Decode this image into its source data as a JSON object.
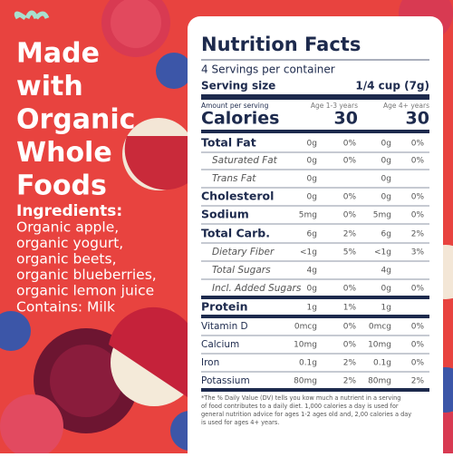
{
  "headline": [
    "Made",
    "with",
    "Organic",
    "Whole",
    "Foods"
  ],
  "ingredients": {
    "heading": "Ingredients:",
    "lines": [
      "Organic apple,",
      "organic yogurt,",
      "organic beets,",
      "organic blueberries,",
      "organic lemon juice"
    ],
    "contains": "Contains: Milk"
  },
  "nutrition": {
    "title": "Nutrition Facts",
    "servings": "4 Servings per container",
    "serving_size_label": "Serving size",
    "serving_size": "1/4 cup (7g)",
    "amount_label": "Amount per serving",
    "calories_label": "Calories",
    "age_groups": [
      "Age 1-3 years",
      "Age 4+ years"
    ],
    "calories": [
      "30",
      "30"
    ],
    "rows": [
      {
        "name": "Total Fat",
        "age1": [
          "0g",
          "0%"
        ],
        "age4": [
          "0g",
          "0%"
        ]
      },
      {
        "name": "Saturated Fat",
        "age1": [
          "0g",
          "0%"
        ],
        "age4": [
          "0g",
          "0%"
        ]
      },
      {
        "name": "Trans Fat",
        "age1": [
          "0g"
        ],
        "age4": [
          "0g"
        ]
      },
      {
        "name": "Cholesterol",
        "age1": [
          "0g",
          "0%"
        ],
        "age4": [
          "0g",
          "0%"
        ]
      },
      {
        "name": "Sodium",
        "age1": [
          "5mg",
          "0%"
        ],
        "age4": [
          "5mg",
          "0%"
        ]
      },
      {
        "name": "Total Carb.",
        "age1": [
          "6g",
          "2%"
        ],
        "age4": [
          "6g",
          "2%"
        ]
      },
      {
        "name": "Dietary Fiber",
        "age1": [
          "<1g",
          "5%"
        ],
        "age4": [
          "<1g",
          "3%"
        ]
      },
      {
        "name": "Total Sugars",
        "age1": [
          "4g"
        ],
        "age4": [
          "4g"
        ]
      },
      {
        "name": "Incl. Added Sugars",
        "age1": [
          "0g",
          "0%"
        ],
        "age4": [
          "0g",
          "0%"
        ]
      },
      {
        "name": "Protein",
        "age1": [
          "1g",
          "1%"
        ],
        "age4": [
          "1g"
        ]
      },
      {
        "name": "Vitamin D",
        "age1": [
          "0mcg",
          "0%"
        ],
        "age4": [
          "0mcg",
          "0%"
        ]
      },
      {
        "name": "Calcium",
        "age1": [
          "10mg",
          "0%"
        ],
        "age4": [
          "10mg",
          "0%"
        ]
      },
      {
        "name": "Iron",
        "age1": [
          "0.1g",
          "2%"
        ],
        "age4": [
          "0.1g",
          "0%"
        ]
      },
      {
        "name": "Potassium",
        "age1": [
          "80mg",
          "2%"
        ],
        "age4": [
          "80mg",
          "2%"
        ]
      }
    ],
    "footnote": [
      "*The % Daily Value (DV) tells you kow much a nutrient in a serving",
      "of food contributes to a daily diet. 1,000 calories a day is used for",
      "general nutrition advice for ages 1-2 ages old and, 2,00 calories a day",
      "is used for ages 4+ years."
    ]
  }
}
